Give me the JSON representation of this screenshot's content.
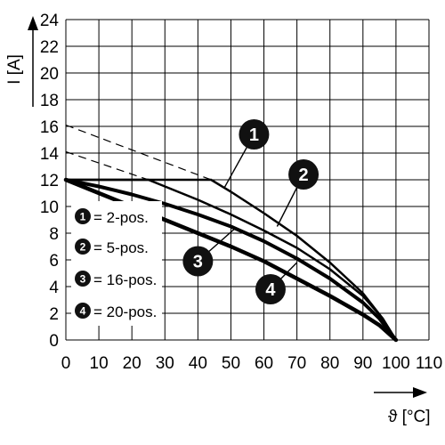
{
  "chart_data": {
    "type": "line",
    "ylabel": "I [A]",
    "xlabel": "ϑ [°C]",
    "xlim": [
      0,
      110
    ],
    "ylim": [
      0,
      24
    ],
    "xticks": [
      0,
      10,
      20,
      30,
      40,
      50,
      60,
      70,
      80,
      90,
      100,
      110
    ],
    "yticks": [
      0,
      2,
      4,
      6,
      8,
      10,
      12,
      14,
      16,
      18,
      20,
      22,
      24
    ],
    "grid": true,
    "legend": {
      "placement": "left-middle",
      "entries": [
        {
          "id": "1",
          "label": "= 2-pos."
        },
        {
          "id": "2",
          "label": "= 5-pos."
        },
        {
          "id": "3",
          "label": "= 16-pos."
        },
        {
          "id": "4",
          "label": "= 20-pos."
        }
      ]
    },
    "series": [
      {
        "id": "1",
        "points": [
          [
            0,
            12
          ],
          [
            44,
            12
          ],
          [
            50,
            11.1
          ],
          [
            60,
            9.5
          ],
          [
            70,
            7.8
          ],
          [
            80,
            5.8
          ],
          [
            90,
            3.5
          ],
          [
            96,
            1.6
          ],
          [
            100,
            0
          ]
        ]
      },
      {
        "id": "2",
        "points": [
          [
            0,
            12
          ],
          [
            25,
            12
          ],
          [
            30,
            11.5
          ],
          [
            40,
            10.5
          ],
          [
            50,
            9.4
          ],
          [
            60,
            8.2
          ],
          [
            70,
            6.9
          ],
          [
            80,
            5.3
          ],
          [
            90,
            3.3
          ],
          [
            96,
            1.6
          ],
          [
            100,
            0
          ]
        ]
      },
      {
        "id": "3",
        "points": [
          [
            0,
            12
          ],
          [
            10,
            11.5
          ],
          [
            20,
            10.9
          ],
          [
            30,
            10.2
          ],
          [
            40,
            9.4
          ],
          [
            50,
            8.5
          ],
          [
            60,
            7.4
          ],
          [
            70,
            6.1
          ],
          [
            80,
            4.6
          ],
          [
            90,
            2.8
          ],
          [
            95,
            1.6
          ],
          [
            100,
            0
          ]
        ]
      },
      {
        "id": "4",
        "points": [
          [
            0,
            12
          ],
          [
            10,
            11.0
          ],
          [
            20,
            10.0
          ],
          [
            30,
            9.0
          ],
          [
            40,
            8.0
          ],
          [
            50,
            7.0
          ],
          [
            60,
            5.9
          ],
          [
            70,
            4.6
          ],
          [
            80,
            3.3
          ],
          [
            90,
            1.9
          ],
          [
            95,
            1.1
          ],
          [
            100,
            0
          ]
        ]
      }
    ],
    "derating_extensions": [
      {
        "id": "1",
        "points": [
          [
            0,
            16.1
          ],
          [
            44,
            12
          ]
        ]
      },
      {
        "id": "2",
        "points": [
          [
            0,
            14.1
          ],
          [
            25,
            12
          ]
        ]
      }
    ],
    "callouts": [
      {
        "id": "1",
        "target": [
          48,
          11.4
        ],
        "label_at": [
          57,
          15.4
        ]
      },
      {
        "id": "2",
        "target": [
          64,
          8.5
        ],
        "label_at": [
          72,
          12.4
        ]
      },
      {
        "id": "3",
        "target": [
          51,
          8.3
        ],
        "label_at": [
          40,
          5.9
        ]
      },
      {
        "id": "4",
        "target": [
          70,
          5.8
        ],
        "label_at": [
          62,
          3.8
        ]
      }
    ]
  }
}
